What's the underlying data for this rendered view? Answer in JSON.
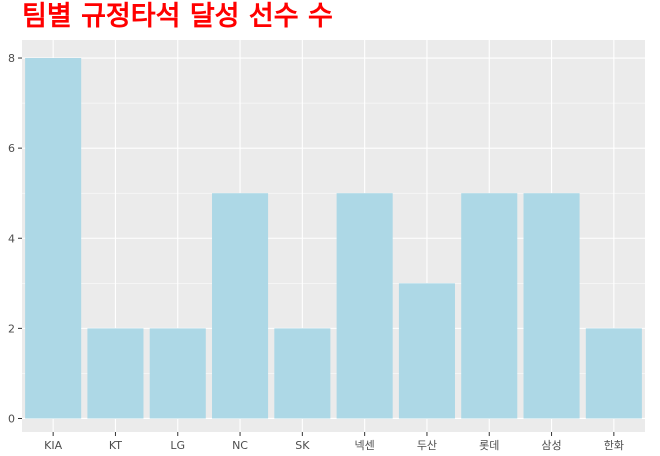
{
  "chart_data": {
    "type": "bar",
    "title": "팀별 규정타석 달성 선수 수",
    "xlabel": "",
    "ylabel": "",
    "categories": [
      "KIA",
      "KT",
      "LG",
      "NC",
      "SK",
      "넥센",
      "두산",
      "롯데",
      "삼성",
      "한화"
    ],
    "values": [
      8,
      2,
      2,
      5,
      2,
      5,
      3,
      5,
      5,
      2
    ],
    "yticks": [
      0,
      2,
      4,
      6,
      8
    ],
    "ylim": [
      -0.3,
      8.4
    ],
    "grid": true,
    "bar_color": "#add8e6",
    "panel_color": "#ebebeb",
    "title_color": "#ff0000"
  }
}
